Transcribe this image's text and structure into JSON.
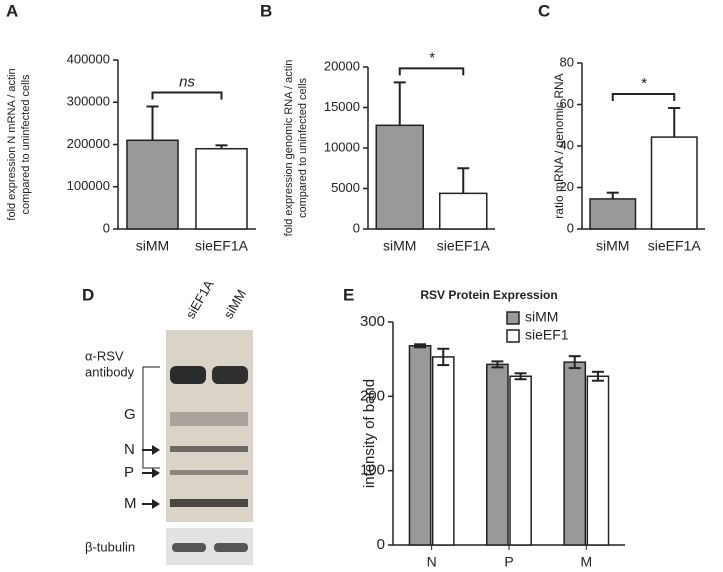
{
  "chart_data": [
    {
      "type": "bar",
      "panel": "A",
      "ylabel": [
        "fold expression N mRNA / actin",
        "compared to uninfected cells"
      ],
      "categories": [
        "siMM",
        "sieEF1A"
      ],
      "values": [
        210000,
        190000
      ],
      "errors": [
        80000,
        8000
      ],
      "colors": [
        "#999999",
        "#ffffff"
      ],
      "ylim": [
        0,
        400000
      ],
      "yticks": [
        0,
        100000,
        200000,
        300000,
        400000
      ],
      "annotation": "ns"
    },
    {
      "type": "bar",
      "panel": "B",
      "ylabel": [
        "fold expression genomic RNA / actin",
        "compared to uninfected cells"
      ],
      "categories": [
        "siMM",
        "sieEF1A"
      ],
      "values": [
        12800,
        4400
      ],
      "errors": [
        5300,
        3100
      ],
      "colors": [
        "#999999",
        "#ffffff"
      ],
      "ylim": [
        0,
        20000
      ],
      "yticks": [
        0,
        5000,
        10000,
        15000,
        20000
      ],
      "annotation": "*"
    },
    {
      "type": "bar",
      "panel": "C",
      "ylabel": [
        "ratio mRNA / genomic RNA"
      ],
      "categories": [
        "siMM",
        "sieEF1A"
      ],
      "values": [
        14.5,
        44.3
      ],
      "errors": [
        3,
        14
      ],
      "colors": [
        "#999999",
        "#ffffff"
      ],
      "ylim": [
        0,
        80
      ],
      "yticks": [
        0,
        20,
        40,
        60,
        80
      ],
      "annotation": "*"
    },
    {
      "type": "bar",
      "panel": "E",
      "title": "RSV Protein Expression",
      "ylabel": [
        "intensity of band"
      ],
      "categories": [
        "N",
        "P",
        "M"
      ],
      "series": [
        {
          "name": "siMM",
          "color": "#999999",
          "values": [
            268,
            243,
            246
          ],
          "errors": [
            2,
            4,
            8
          ]
        },
        {
          "name": "sieEF1",
          "color": "#ffffff",
          "values": [
            253,
            227,
            227
          ],
          "errors": [
            11,
            4,
            6
          ]
        }
      ],
      "ylim": [
        0,
        300
      ],
      "yticks": [
        0,
        100,
        200,
        300
      ],
      "legend": "top-right"
    }
  ],
  "blot": {
    "panel": "D",
    "lanes": [
      "siEF1A",
      "siMM"
    ],
    "antibody": [
      "α-RSV",
      "antibody"
    ],
    "bands": [
      "G",
      "N",
      "P",
      "M"
    ],
    "loading_control": "β-tubulin"
  }
}
